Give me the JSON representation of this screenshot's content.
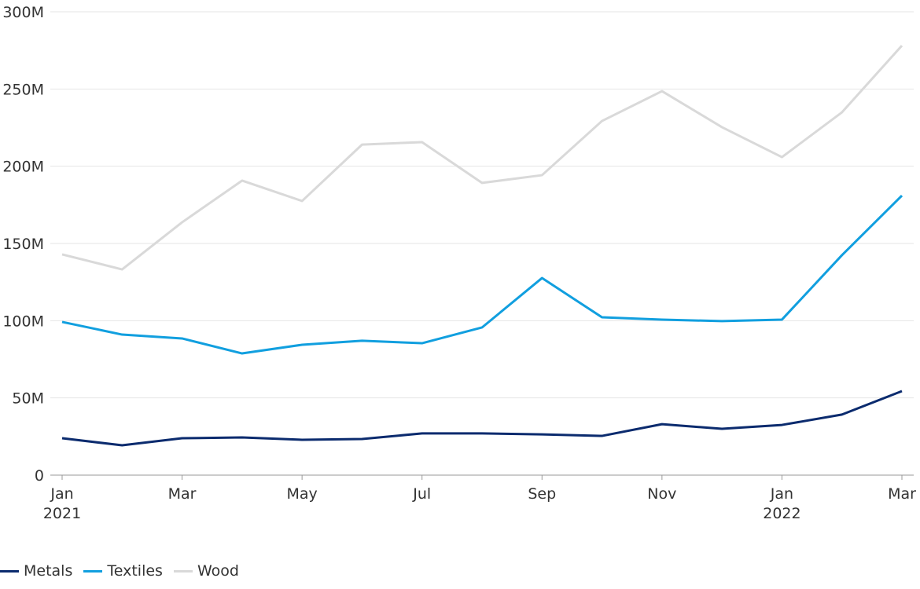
{
  "chart_data": {
    "type": "line",
    "x": [
      "Jan 2021",
      "Feb 2021",
      "Mar 2021",
      "Apr 2021",
      "May 2021",
      "Jun 2021",
      "Jul 2021",
      "Aug 2021",
      "Sep 2021",
      "Oct 2021",
      "Nov 2021",
      "Dec 2021",
      "Jan 2022",
      "Feb 2022",
      "Mar 2022"
    ],
    "x_tick_labels": [
      {
        "index": 0,
        "line1": "Jan",
        "line2": "2021"
      },
      {
        "index": 2,
        "line1": "Mar",
        "line2": ""
      },
      {
        "index": 4,
        "line1": "May",
        "line2": ""
      },
      {
        "index": 6,
        "line1": "Jul",
        "line2": ""
      },
      {
        "index": 8,
        "line1": "Sep",
        "line2": ""
      },
      {
        "index": 10,
        "line1": "Nov",
        "line2": ""
      },
      {
        "index": 12,
        "line1": "Jan",
        "line2": "2022"
      },
      {
        "index": 14,
        "line1": "Mar",
        "line2": ""
      }
    ],
    "y_ticks": [
      0,
      50,
      100,
      150,
      200,
      250,
      300
    ],
    "y_tick_labels": [
      "0",
      "50M",
      "100M",
      "150M",
      "200M",
      "250M",
      "300M"
    ],
    "ylim": [
      0,
      300
    ],
    "y_unit": "millions",
    "grid": true,
    "legend_position": "bottom-left",
    "series": [
      {
        "name": "Metals",
        "color": "#0b2b6e",
        "values": [
          23.9,
          19.3,
          23.9,
          24.4,
          22.9,
          23.4,
          27.0,
          27.0,
          26.4,
          25.4,
          33.0,
          30.0,
          32.5,
          39.2,
          54.4
        ]
      },
      {
        "name": "Textiles",
        "color": "#119fdf",
        "values": [
          99.2,
          91.0,
          88.5,
          78.8,
          84.4,
          87.0,
          85.4,
          95.6,
          127.6,
          102.2,
          100.7,
          99.7,
          100.7,
          142.4,
          181.0
        ]
      },
      {
        "name": "Wood",
        "color": "#d9d9d9",
        "values": [
          142.9,
          133.2,
          163.7,
          190.7,
          177.5,
          214.0,
          215.6,
          189.2,
          194.2,
          229.3,
          248.6,
          225.3,
          205.9,
          234.9,
          278.1
        ]
      }
    ]
  }
}
